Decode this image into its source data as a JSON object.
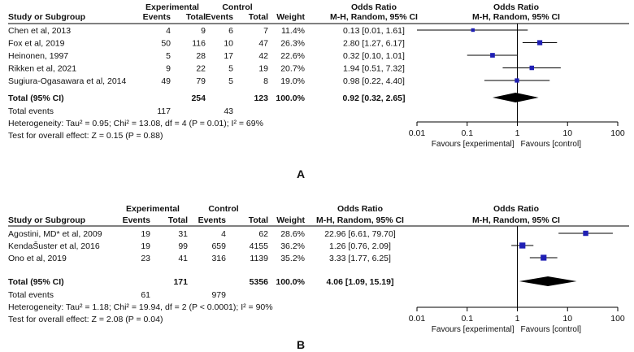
{
  "chart_data": [
    {
      "type": "forest",
      "panel_label": "A",
      "header": {
        "study_col": "Study or Subgroup",
        "group1": "Experimental",
        "group2": "Control",
        "events": "Events",
        "total": "Total",
        "weight": "Weight",
        "or_title": "Odds Ratio",
        "or_method": "M-H, Random, 95% CI",
        "plot_title": "Odds Ratio",
        "plot_method": "M-H, Random, 95% CI"
      },
      "studies": [
        {
          "name": "Chen et al, 2013",
          "exp_events": "4",
          "exp_total": "9",
          "ctl_events": "6",
          "ctl_total": "7",
          "weight": "11.4%",
          "ci_text": "0.13 [0.01, 1.61]",
          "or": 0.13,
          "lo": 0.01,
          "hi": 1.61
        },
        {
          "name": "Fox et al, 2019",
          "exp_events": "50",
          "exp_total": "116",
          "ctl_events": "10",
          "ctl_total": "47",
          "weight": "26.3%",
          "ci_text": "2.80 [1.27, 6.17]",
          "or": 2.8,
          "lo": 1.27,
          "hi": 6.17
        },
        {
          "name": "Heinonen, 1997",
          "exp_events": "5",
          "exp_total": "28",
          "ctl_events": "17",
          "ctl_total": "42",
          "weight": "22.6%",
          "ci_text": "0.32 [0.10, 1.01]",
          "or": 0.32,
          "lo": 0.1,
          "hi": 1.01
        },
        {
          "name": "Rikken et al, 2021",
          "exp_events": "9",
          "exp_total": "22",
          "ctl_events": "5",
          "ctl_total": "19",
          "weight": "20.7%",
          "ci_text": "1.94 [0.51, 7.32]",
          "or": 1.94,
          "lo": 0.51,
          "hi": 7.32
        },
        {
          "name": "Sugiura-Ogasawara et al, 2014",
          "exp_events": "49",
          "exp_total": "79",
          "ctl_events": "5",
          "ctl_total": "8",
          "weight": "19.0%",
          "ci_text": "0.98 [0.22, 4.40]",
          "or": 0.98,
          "lo": 0.22,
          "hi": 4.4
        }
      ],
      "total": {
        "label": "Total (95% CI)",
        "exp_total": "254",
        "ctl_total": "123",
        "weight": "100.0%",
        "ci_text": "0.92 [0.32, 2.65]",
        "or": 0.92,
        "lo": 0.32,
        "hi": 2.65
      },
      "total_events": {
        "label": "Total events",
        "exp": "117",
        "ctl": "43"
      },
      "heterogeneity": "Heterogeneity: Tau² = 0.95; Chi² = 13.08, df = 4 (P = 0.01); I² = 69%",
      "overall_effect": "Test for overall effect: Z = 0.15 (P = 0.88)",
      "axis": {
        "ticks": [
          0.01,
          0.1,
          1,
          10,
          100
        ],
        "tick_labels": [
          "0.01",
          "0.1",
          "1",
          "10",
          "100"
        ],
        "scale": "log",
        "xlim": [
          0.01,
          100
        ]
      },
      "favours_left": "Favours [experimental]",
      "favours_right": "Favours [control]"
    },
    {
      "type": "forest",
      "panel_label": "B",
      "header": {
        "study_col": "Study or Subgroup",
        "group1": "Experimental",
        "group2": "Control",
        "events": "Events",
        "total": "Total",
        "weight": "Weight",
        "or_title": "Odds Ratio",
        "or_method": "M-H, Random, 95% CI",
        "plot_title": "Odds Ratio",
        "plot_method": "M-H, Random, 95% CI"
      },
      "studies": [
        {
          "name": "Agostini, MD* et al, 2009",
          "exp_events": "19",
          "exp_total": "31",
          "ctl_events": "4",
          "ctl_total": "62",
          "weight": "28.6%",
          "ci_text": "22.96 [6.61, 79.70]",
          "or": 22.96,
          "lo": 6.61,
          "hi": 79.7
        },
        {
          "name": "KendaŠuster et al, 2016",
          "exp_events": "19",
          "exp_total": "99",
          "ctl_events": "659",
          "ctl_total": "4155",
          "weight": "36.2%",
          "ci_text": "1.26 [0.76, 2.09]",
          "or": 1.26,
          "lo": 0.76,
          "hi": 2.09
        },
        {
          "name": "Ono et al, 2019",
          "exp_events": "23",
          "exp_total": "41",
          "ctl_events": "316",
          "ctl_total": "1139",
          "weight": "35.2%",
          "ci_text": "3.33 [1.77, 6.25]",
          "or": 3.33,
          "lo": 1.77,
          "hi": 6.25
        }
      ],
      "total": {
        "label": "Total (95% CI)",
        "exp_total": "171",
        "ctl_total": "5356",
        "weight": "100.0%",
        "ci_text": "4.06 [1.09, 15.19]",
        "or": 4.06,
        "lo": 1.09,
        "hi": 15.19
      },
      "total_events": {
        "label": "Total events",
        "exp": "61",
        "ctl": "979"
      },
      "heterogeneity": "Heterogeneity: Tau² = 1.18; Chi² = 19.94, df = 2 (P < 0.0001); I² = 90%",
      "overall_effect": "Test for overall effect: Z = 2.08 (P = 0.04)",
      "axis": {
        "ticks": [
          0.01,
          0.1,
          1,
          10,
          100
        ],
        "tick_labels": [
          "0.01",
          "0.1",
          "1",
          "10",
          "100"
        ],
        "scale": "log",
        "xlim": [
          0.01,
          100
        ]
      },
      "favours_left": "Favours [experimental]",
      "favours_right": "Favours [control]"
    }
  ],
  "colors": {
    "marker": "#1f1fb4",
    "diamond": "#000000",
    "line": "#000000",
    "text": "#111111"
  }
}
